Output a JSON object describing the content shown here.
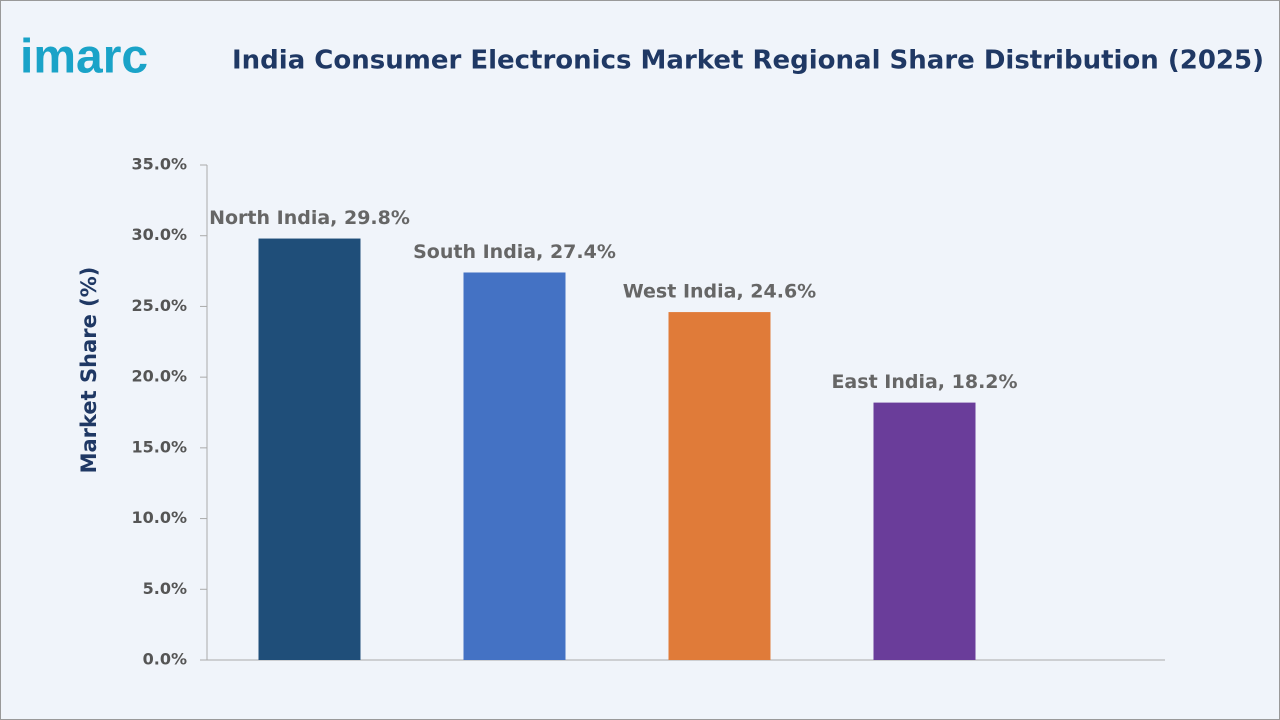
{
  "logo": "imarc",
  "chart_data": {
    "type": "bar",
    "title": "India Consumer Electronics Market Regional Share Distribution (2025)",
    "y_label": "Market Share (%)",
    "values": [
      29.8,
      27.4,
      24.6,
      18.2
    ],
    "value_labels": [
      "North India, 29.8%",
      "South India, 27.4%",
      "West India, 24.6%",
      "East India, 18.2%"
    ],
    "colors": [
      "#1f4e79",
      "#4472c4",
      "#e07b39",
      "#6a3d9a"
    ],
    "ylim": [
      0,
      35
    ],
    "yticks": [
      {
        "value": 0,
        "label": "0.0%"
      },
      {
        "value": 5,
        "label": "5.0%"
      },
      {
        "value": 10,
        "label": "10.0%"
      },
      {
        "value": 15,
        "label": "15.0%"
      },
      {
        "value": 20,
        "label": "20.0%"
      },
      {
        "value": 25,
        "label": "25.0%"
      },
      {
        "value": 30,
        "label": "30.0%"
      },
      {
        "value": 35,
        "label": "35.0%"
      }
    ],
    "grid": false
  }
}
